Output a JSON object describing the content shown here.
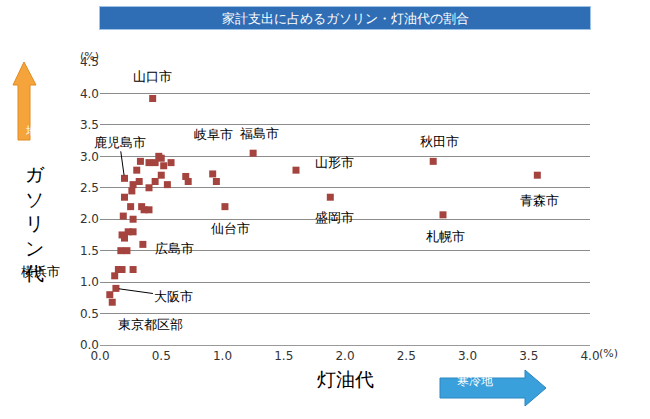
{
  "chart_data": {
    "type": "scatter",
    "title": "家計支出に占めるガソリン・灯油代の割合",
    "x_label": "灯油代",
    "y_label": "ガソリン代",
    "x_unit": "(%)",
    "y_unit": "(%)",
    "x_arrow": "寒冷地",
    "y_arrow": "地方",
    "color": "#a5443f",
    "marker": "square",
    "grid": true,
    "xlim": [
      0,
      4
    ],
    "ylim": [
      0,
      4.5
    ],
    "xticks": [
      {
        "value": 0,
        "label": "0.0"
      },
      {
        "value": 0.5,
        "label": "0.5"
      },
      {
        "value": 1,
        "label": "1.0"
      },
      {
        "value": 1.5,
        "label": "1.5"
      },
      {
        "value": 2,
        "label": "2.0"
      },
      {
        "value": 2.5,
        "label": "2.5"
      },
      {
        "value": 3,
        "label": "3.0"
      },
      {
        "value": 3.5,
        "label": "3.5"
      },
      {
        "value": 4,
        "label": "4.0"
      }
    ],
    "yticks": [
      {
        "value": 0,
        "label": "0.0"
      },
      {
        "value": 0.5,
        "label": "0.5"
      },
      {
        "value": 1,
        "label": "1.0"
      },
      {
        "value": 1.5,
        "label": "1.5"
      },
      {
        "value": 2,
        "label": "2.0"
      },
      {
        "value": 2.5,
        "label": "2.5"
      },
      {
        "value": 3,
        "label": "3.0"
      },
      {
        "value": 3.5,
        "label": "3.5"
      },
      {
        "value": 4,
        "label": "4.0"
      },
      {
        "value": 4.5,
        "label": "4.5"
      }
    ],
    "x": [
      0.08,
      0.1,
      0.12,
      0.13,
      0.15,
      0.18,
      0.27,
      0.17,
      0.22,
      0.18,
      0.2,
      0.23,
      0.27,
      0.35,
      0.19,
      0.27,
      0.25,
      0.2,
      0.26,
      0.27,
      0.32,
      0.34,
      0.36,
      0.4,
      0.33,
      0.3,
      0.4,
      0.45,
      0.5,
      0.48,
      0.52,
      0.58,
      0.4,
      0.45,
      0.5,
      0.55,
      0.7,
      0.72,
      0.92,
      0.95,
      1.02,
      0.2,
      0.43,
      1.25,
      1.6,
      1.88,
      2.72,
      2.8,
      3.57
    ],
    "values": [
      0.8,
      0.68,
      1.1,
      0.9,
      1.2,
      1.2,
      1.2,
      1.5,
      1.5,
      1.75,
      1.7,
      1.8,
      1.8,
      1.6,
      2.05,
      2.0,
      2.2,
      2.35,
      2.45,
      2.55,
      2.6,
      2.2,
      2.15,
      2.15,
      2.92,
      2.78,
      2.9,
      2.9,
      2.97,
      3.0,
      2.85,
      2.9,
      2.5,
      2.6,
      2.7,
      2.55,
      2.68,
      2.6,
      2.72,
      2.6,
      2.2,
      2.65,
      3.92,
      3.05,
      2.78,
      2.35,
      2.92,
      2.07,
      2.7
    ],
    "labels": [
      {
        "text": "山口市",
        "x": 0.43,
        "y": 3.92
      },
      {
        "text": "鹿児島市",
        "x": 0.2,
        "y": 2.65
      },
      {
        "text": "岐阜市",
        "x": 0.5,
        "y": 2.97
      },
      {
        "text": "福島市",
        "x": 1.25,
        "y": 3.05
      },
      {
        "text": "山形市",
        "x": 1.6,
        "y": 2.78
      },
      {
        "text": "秋田市",
        "x": 2.72,
        "y": 2.92
      },
      {
        "text": "青森市",
        "x": 3.57,
        "y": 2.7
      },
      {
        "text": "仙台市",
        "x": 1.02,
        "y": 2.2
      },
      {
        "text": "盛岡市",
        "x": 1.88,
        "y": 2.35
      },
      {
        "text": "札幌市",
        "x": 2.8,
        "y": 2.07
      },
      {
        "text": "広島市",
        "x": 0.35,
        "y": 1.6
      },
      {
        "text": "横浜市",
        "x": 0.15,
        "y": 1.2
      },
      {
        "text": "大阪市",
        "x": 0.13,
        "y": 0.9
      },
      {
        "text": "東京都区部",
        "x": 0.1,
        "y": 0.68
      }
    ]
  }
}
